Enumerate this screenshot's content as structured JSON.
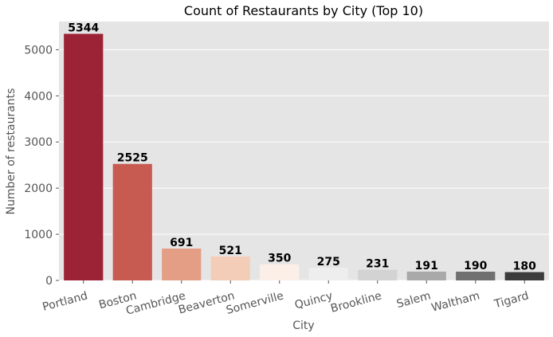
{
  "chart_data": {
    "type": "bar",
    "title": "Count of Restaurants by City (Top 10)",
    "xlabel": "City",
    "ylabel": "Number of restaurants",
    "categories": [
      "Portland",
      "Boston",
      "Cambridge",
      "Beaverton",
      "Somerville",
      "Quincy",
      "Brookline",
      "Salem",
      "Waltham",
      "Tigard"
    ],
    "values": [
      5344,
      2525,
      691,
      521,
      350,
      275,
      231,
      191,
      190,
      180
    ],
    "value_labels": [
      "5344",
      "2525",
      "691",
      "521",
      "350",
      "275",
      "231",
      "191",
      "190",
      "180"
    ],
    "colors": [
      "#9b2335",
      "#c75b52",
      "#e49e85",
      "#f4cdb8",
      "#fbefe8",
      "#eeeeee",
      "#d3d3d3",
      "#a9a9a9",
      "#707070",
      "#3c3c3c"
    ],
    "yticks": [
      0,
      1000,
      2000,
      3000,
      4000,
      5000
    ],
    "ytick_labels": [
      "0",
      "1000",
      "2000",
      "3000",
      "4000",
      "5000"
    ],
    "ylim": [
      0,
      5611
    ],
    "grid": true,
    "background_color": "#e5e5e5",
    "grid_color": "#ffffff"
  }
}
